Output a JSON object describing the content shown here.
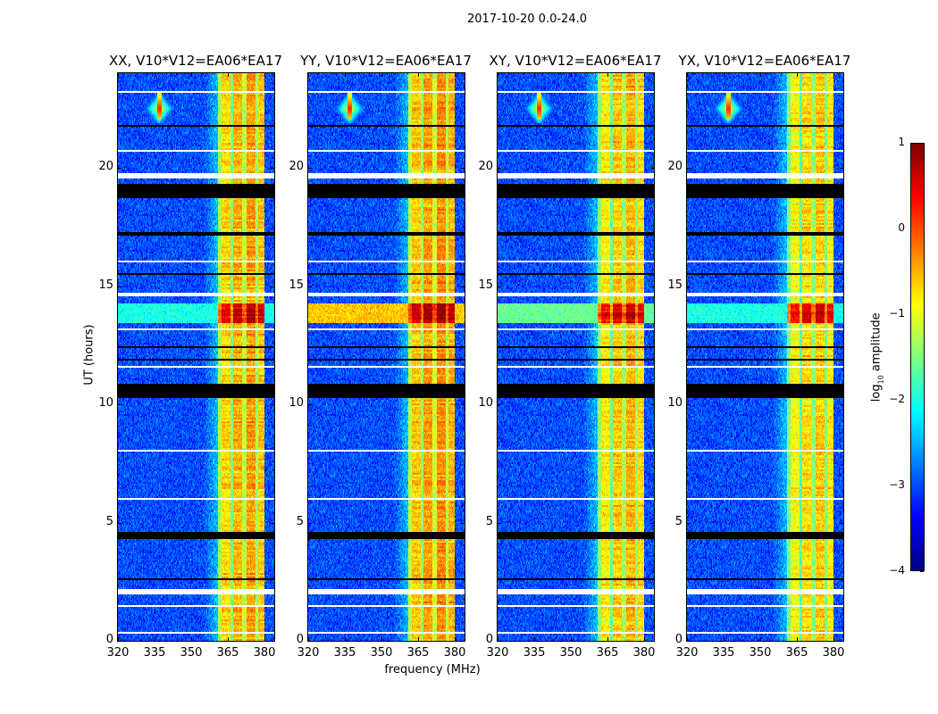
{
  "suptitle": "2017-10-20 0.0-24.0",
  "chart_data": {
    "type": "heatmap",
    "title": "2017-10-20 0.0-24.0",
    "xlabel": "frequency (MHz)",
    "ylabel": "UT (hours)",
    "xlim": [
      320,
      384
    ],
    "ylim": [
      0,
      24
    ],
    "xticks": [
      320,
      335,
      350,
      365,
      380
    ],
    "yticks": [
      0,
      5,
      10,
      15,
      20
    ],
    "panels": [
      {
        "title": "XX, V10*V12=EA06*EA17",
        "band_offset": 0.0,
        "strong_bg": -2.0
      },
      {
        "title": "YY, V10*V12=EA06*EA17",
        "band_offset": 0.1,
        "strong_bg": -0.6
      },
      {
        "title": "XY, V10*V12=EA06*EA17",
        "band_offset": -0.1,
        "strong_bg": -1.6
      },
      {
        "title": "YX, V10*V12=EA06*EA17",
        "band_offset": -0.2,
        "strong_bg": -2.0
      }
    ],
    "colorbar": {
      "label_prefix": "log",
      "label_sub": "10",
      "label_suffix": " amplitude",
      "range": [
        -4,
        1
      ],
      "ticks": [
        -4,
        -3,
        -2,
        -1,
        0,
        1
      ],
      "colormap": "jet"
    },
    "background_log_amplitude": -3.0,
    "rfi_band_mhz": [
      361,
      380
    ],
    "rfi_stripes": [
      {
        "f": [
          361,
          362.5
        ],
        "v": -1.3
      },
      {
        "f": [
          362.5,
          366
        ],
        "v": -0.7
      },
      {
        "f": [
          366,
          367
        ],
        "v": -1.5
      },
      {
        "f": [
          367,
          371
        ],
        "v": -0.5
      },
      {
        "f": [
          371,
          372.5
        ],
        "v": -1.2
      },
      {
        "f": [
          372.5,
          376.5
        ],
        "v": -0.4
      },
      {
        "f": [
          376.5,
          377.5
        ],
        "v": -1.3
      },
      {
        "f": [
          377.5,
          380
        ],
        "v": -0.6
      }
    ],
    "strong_interval_hours": [
      13.4,
      14.3
    ],
    "transient_event": {
      "freq_mhz": 337,
      "time_hours": 22.5
    },
    "flagged_intervals_hours": [
      [
        19.55,
        19.75
      ],
      [
        14.55,
        14.75
      ],
      [
        11.55,
        11.65
      ],
      [
        1.95,
        2.2
      ],
      [
        1.4,
        1.5
      ],
      [
        23.2,
        23.25
      ],
      [
        22.85,
        22.9
      ],
      [
        21.1,
        21.15
      ],
      [
        20.7,
        20.75
      ],
      [
        16.0,
        16.05
      ],
      [
        12.8,
        12.85
      ],
      [
        13.15,
        13.2
      ],
      [
        8.0,
        8.05
      ],
      [
        6.0,
        6.05
      ],
      [
        3.6,
        3.65
      ],
      [
        0.3,
        0.35
      ]
    ],
    "zero_intervals_hours": [
      [
        18.7,
        19.3
      ],
      [
        17.15,
        17.25
      ],
      [
        11.85,
        11.95
      ],
      [
        10.3,
        10.9
      ],
      [
        4.3,
        4.6
      ],
      [
        2.55,
        2.65
      ],
      [
        21.7,
        21.8
      ],
      [
        15.5,
        15.55
      ],
      [
        12.4,
        12.45
      ]
    ]
  }
}
